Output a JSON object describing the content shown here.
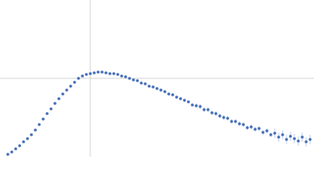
{
  "chart_data": {
    "type": "scatter",
    "xlim": [
      0,
      4
    ],
    "ylim": [
      0,
      2
    ],
    "reference_lines": {
      "x": 1.15,
      "y": 1.0,
      "color": "#d0d0d0"
    },
    "series": [
      {
        "color": "#3a66b5",
        "error_color": "#a9bde3",
        "x": [
          0.1,
          0.15,
          0.2,
          0.25,
          0.3,
          0.35,
          0.4,
          0.45,
          0.5,
          0.55,
          0.6,
          0.65,
          0.7,
          0.75,
          0.8,
          0.85,
          0.9,
          0.95,
          1.0,
          1.05,
          1.1,
          1.15,
          1.2,
          1.25,
          1.3,
          1.35,
          1.4,
          1.45,
          1.5,
          1.55,
          1.6,
          1.65,
          1.7,
          1.75,
          1.8,
          1.85,
          1.9,
          1.95,
          2.0,
          2.05,
          2.1,
          2.15,
          2.2,
          2.25,
          2.3,
          2.35,
          2.4,
          2.45,
          2.5,
          2.55,
          2.6,
          2.65,
          2.7,
          2.75,
          2.8,
          2.85,
          2.9,
          2.95,
          3.0,
          3.05,
          3.1,
          3.15,
          3.2,
          3.25,
          3.3,
          3.35,
          3.4,
          3.45,
          3.5,
          3.55,
          3.6,
          3.65,
          3.7,
          3.75,
          3.8,
          3.85,
          3.9,
          3.95
        ],
        "values": [
          0.03,
          0.06,
          0.1,
          0.14,
          0.19,
          0.23,
          0.28,
          0.34,
          0.41,
          0.48,
          0.55,
          0.61,
          0.68,
          0.74,
          0.8,
          0.85,
          0.9,
          0.95,
          1.0,
          1.03,
          1.05,
          1.06,
          1.07,
          1.08,
          1.08,
          1.07,
          1.06,
          1.06,
          1.05,
          1.03,
          1.02,
          1.0,
          0.98,
          0.97,
          0.94,
          0.93,
          0.9,
          0.89,
          0.87,
          0.85,
          0.83,
          0.8,
          0.79,
          0.76,
          0.74,
          0.72,
          0.7,
          0.66,
          0.65,
          0.64,
          0.6,
          0.6,
          0.56,
          0.55,
          0.52,
          0.5,
          0.49,
          0.45,
          0.45,
          0.42,
          0.41,
          0.37,
          0.38,
          0.35,
          0.36,
          0.31,
          0.33,
          0.28,
          0.3,
          0.25,
          0.28,
          0.22,
          0.26,
          0.23,
          0.2,
          0.25,
          0.19,
          0.22
        ],
        "errors": [
          0.005,
          0.005,
          0.005,
          0.005,
          0.005,
          0.005,
          0.005,
          0.005,
          0.005,
          0.005,
          0.005,
          0.005,
          0.005,
          0.005,
          0.005,
          0.005,
          0.005,
          0.005,
          0.005,
          0.005,
          0.005,
          0.005,
          0.005,
          0.005,
          0.005,
          0.005,
          0.005,
          0.005,
          0.01,
          0.01,
          0.01,
          0.01,
          0.01,
          0.01,
          0.01,
          0.01,
          0.01,
          0.01,
          0.02,
          0.02,
          0.02,
          0.02,
          0.02,
          0.02,
          0.02,
          0.02,
          0.02,
          0.02,
          0.03,
          0.03,
          0.03,
          0.03,
          0.03,
          0.03,
          0.03,
          0.03,
          0.03,
          0.03,
          0.03,
          0.03,
          0.03,
          0.03,
          0.03,
          0.03,
          0.03,
          0.03,
          0.03,
          0.03,
          0.06,
          0.06,
          0.06,
          0.06,
          0.06,
          0.06,
          0.06,
          0.06,
          0.06,
          0.06
        ]
      }
    ]
  }
}
